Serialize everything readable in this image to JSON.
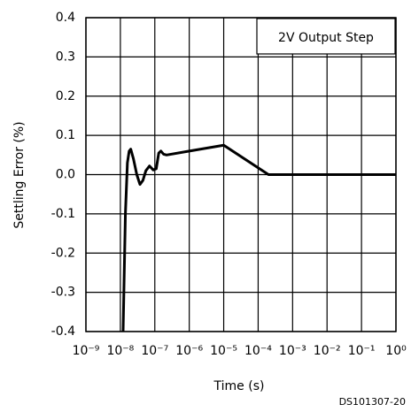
{
  "chart_data": {
    "type": "line",
    "xlabel": "Time (s)",
    "ylabel": "Settling Error (%)",
    "annotation": "2V Output Step",
    "footnote": "DS101307-20",
    "xscale": "log",
    "grid": true,
    "xlim": [
      1e-09,
      1
    ],
    "ylim": [
      -0.4,
      0.4
    ],
    "xticks": [
      {
        "value": 1e-09,
        "label": "10⁻⁹"
      },
      {
        "value": 1e-08,
        "label": "10⁻⁸"
      },
      {
        "value": 1e-07,
        "label": "10⁻⁷"
      },
      {
        "value": 1e-06,
        "label": "10⁻⁶"
      },
      {
        "value": 1e-05,
        "label": "10⁻⁵"
      },
      {
        "value": 0.0001,
        "label": "10⁻⁴"
      },
      {
        "value": 0.001,
        "label": "10⁻³"
      },
      {
        "value": 0.01,
        "label": "10⁻²"
      },
      {
        "value": 0.1,
        "label": "10⁻¹"
      },
      {
        "value": 1,
        "label": "10⁰"
      }
    ],
    "yticks": [
      0.4,
      0.3,
      0.2,
      0.1,
      {
        "value": 0,
        "label": "0.0"
      },
      -0.1,
      -0.2,
      -0.3,
      -0.4
    ],
    "series": [
      {
        "color": "#000000",
        "x": [
          1.2e-08,
          1.4e-08,
          1.6e-08,
          1.8e-08,
          2e-08,
          2.4e-08,
          3e-08,
          3.7e-08,
          4.5e-08,
          5.5e-08,
          7e-08,
          9e-08,
          1.1e-07,
          1.3e-07,
          1.5e-07,
          1.8e-07,
          2.2e-07,
          1e-06,
          1e-05,
          0.0002,
          1
        ],
        "values": [
          -0.4,
          -0.1,
          0.03,
          0.06,
          0.065,
          0.04,
          0,
          -0.025,
          -0.015,
          0.01,
          0.022,
          0.012,
          0.015,
          0.055,
          0.06,
          0.052,
          0.05,
          0.06,
          0.075,
          0,
          0
        ]
      }
    ]
  }
}
